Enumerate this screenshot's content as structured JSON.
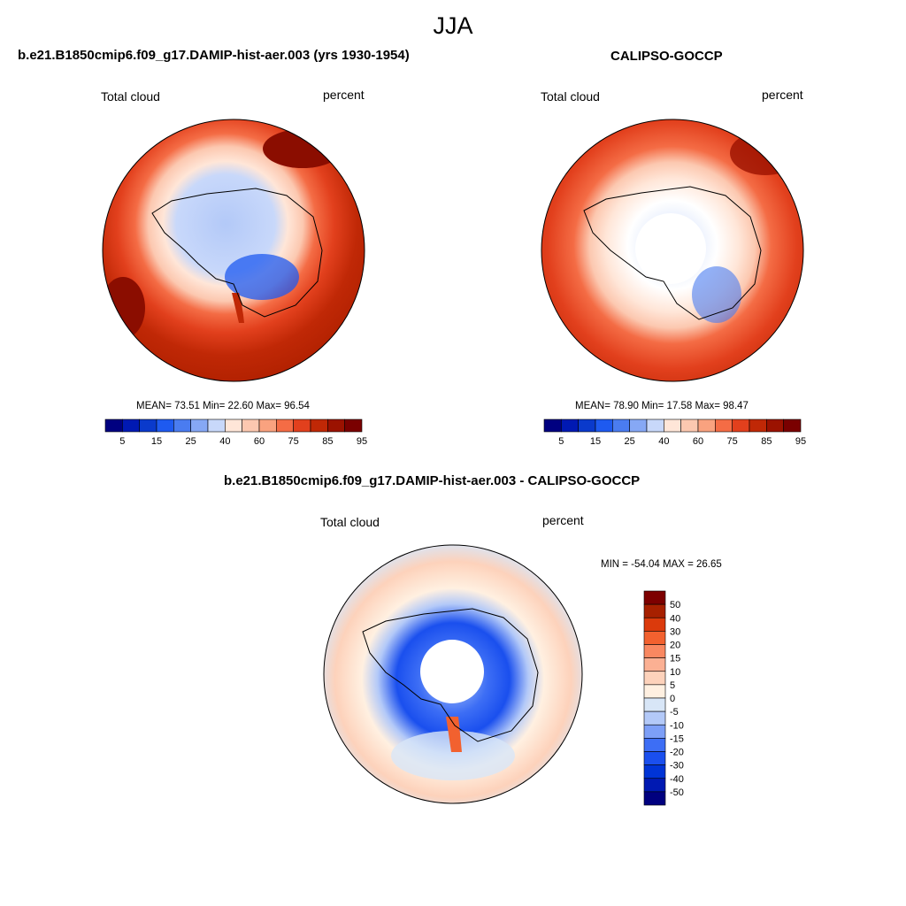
{
  "page_title": "JJA",
  "colors": {
    "abs_palette": [
      "#000080",
      "#0019b3",
      "#0a3acc",
      "#1e5af0",
      "#4a7cf0",
      "#86a8f5",
      "#c8d8fa",
      "#ffe6d8",
      "#fcc8b0",
      "#f9a27f",
      "#f46c45",
      "#e2401d",
      "#c02806",
      "#9b1200",
      "#7a0000"
    ],
    "diff_palette": [
      "#00007f",
      "#0019b2",
      "#0034d6",
      "#1a4fee",
      "#3d6ef5",
      "#7d9ff7",
      "#b3c9f8",
      "#d8e6f7",
      "#fff0e1",
      "#fdd2bb",
      "#fbb093",
      "#f98861",
      "#f2612f",
      "#db3a0c",
      "#a72000",
      "#7d0000"
    ]
  },
  "panels": [
    {
      "title": "b.e21.B1850cmip6.f09_g17.DAMIP-hist-aer.003 (yrs 1930-1954)",
      "variable": "Total cloud",
      "units": "percent",
      "stats": "MEAN=  73.51  Min=  22.60  Max=  96.54"
    },
    {
      "title": "CALIPSO-GOCCP",
      "variable": "Total cloud",
      "units": "percent",
      "stats": "MEAN=  78.90  Min=  17.58  Max=  98.47"
    },
    {
      "title": "b.e21.B1850cmip6.f09_g17.DAMIP-hist-aer.003 - CALIPSO-GOCCP",
      "variable": "Total cloud",
      "units": "percent",
      "stats": "MIN = -54.04 MAX =  26.65"
    }
  ],
  "chart_data": [
    {
      "type": "heatmap",
      "title": "b.e21.B1850cmip6.f09_g17.DAMIP-hist-aer.003 (yrs 1930-1954)",
      "projection": "south polar stereographic",
      "variable": "Total cloud",
      "units": "percent",
      "stats": {
        "mean": 73.51,
        "min": 22.6,
        "max": 96.54
      },
      "colorbar_levels": [
        5,
        10,
        15,
        20,
        25,
        30,
        40,
        50,
        60,
        65,
        70,
        75,
        80,
        85,
        90,
        95
      ],
      "colorbar_tick_labels": [
        "5",
        "15",
        "25",
        "40",
        "60",
        "75",
        "85",
        "95"
      ],
      "colorbar_orientation": "horizontal"
    },
    {
      "type": "heatmap",
      "title": "CALIPSO-GOCCP",
      "projection": "south polar stereographic",
      "variable": "Total cloud",
      "units": "percent",
      "stats": {
        "mean": 78.9,
        "min": 17.58,
        "max": 98.47
      },
      "colorbar_levels": [
        5,
        10,
        15,
        20,
        25,
        30,
        40,
        50,
        60,
        65,
        70,
        75,
        80,
        85,
        90,
        95
      ],
      "colorbar_tick_labels": [
        "5",
        "15",
        "25",
        "40",
        "60",
        "75",
        "85",
        "95"
      ],
      "colorbar_orientation": "horizontal"
    },
    {
      "type": "heatmap",
      "title": "b.e21.B1850cmip6.f09_g17.DAMIP-hist-aer.003 - CALIPSO-GOCCP",
      "projection": "south polar stereographic",
      "variable": "Total cloud",
      "units": "percent",
      "stats": {
        "min": -54.04,
        "max": 26.65
      },
      "colorbar_tick_labels": [
        "50",
        "40",
        "30",
        "20",
        "15",
        "10",
        "5",
        "0",
        "-5",
        "-10",
        "-15",
        "-20",
        "-30",
        "-40",
        "-50"
      ],
      "colorbar_orientation": "vertical"
    }
  ]
}
